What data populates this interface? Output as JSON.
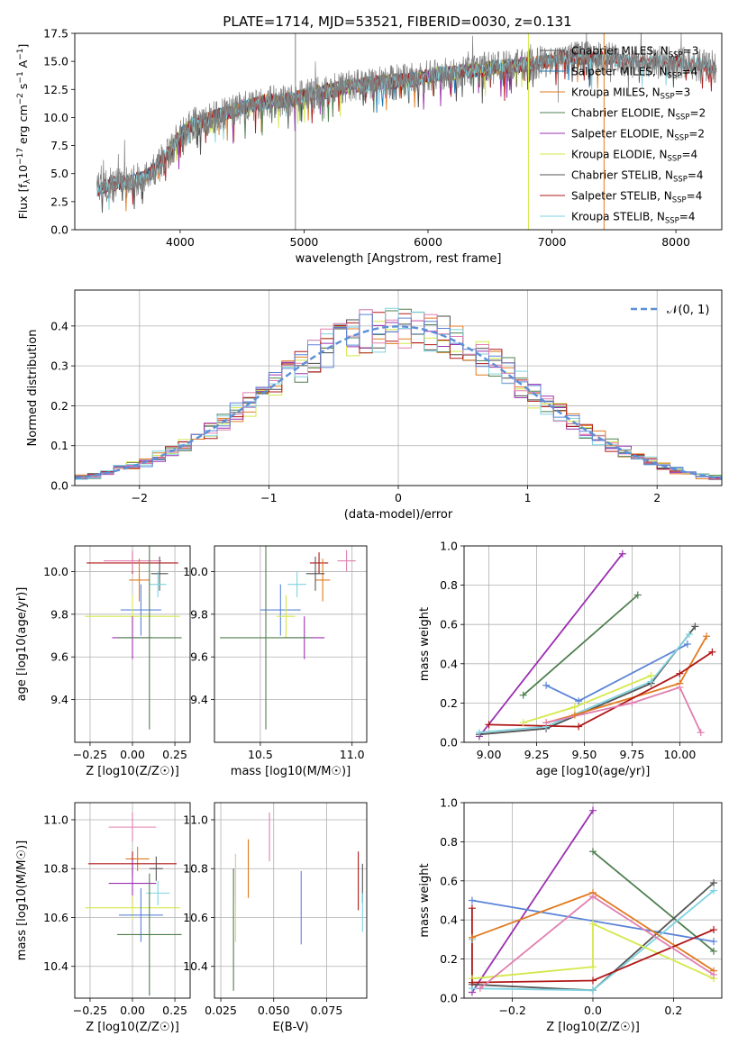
{
  "colors": {
    "Chabrier MILES": "#4a4a4a",
    "Salpeter MILES": "#1f77b4",
    "Kroupa MILES": "#e07b20",
    "Chabrier ELODIE": "#4f7f4f",
    "Salpeter ELODIE": "#9b30b0",
    "Kroupa ELODIE": "#d4e84a",
    "Chabrier STELIB": "#555555",
    "Salpeter STELIB": "#b01818",
    "Kroupa STELIB": "#7fd3e0",
    "extra_blue": "#5b84d8",
    "extra_pink": "#e07fb0",
    "gaussian": "#5b8fd6"
  },
  "chart_data": [
    {
      "id": "spectrum",
      "type": "line",
      "title": "PLATE=1714, MJD=53521, FIBERID=0030, z=0.131",
      "xlabel": "wavelength [Angstrom, rest frame]",
      "ylabel_parts": [
        "Flux [f",
        "λ",
        "10",
        "−17",
        " erg cm",
        "−2",
        " s",
        "−1",
        " A",
        "−1",
        "]"
      ],
      "xlim": [
        3150,
        8370
      ],
      "ylim": [
        0,
        17.5
      ],
      "xticks": [
        "4000",
        "5000",
        "6000",
        "7000",
        "8000"
      ],
      "yticks": [
        "0.0",
        "2.5",
        "5.0",
        "7.5",
        "10.0",
        "12.5",
        "15.0",
        "17.5"
      ],
      "grid": false,
      "legend_position": "upper right",
      "legend": [
        {
          "label": "Chabrier MILES",
          "nssp": "3"
        },
        {
          "label": "Salpeter MILES",
          "nssp": "4"
        },
        {
          "label": "Kroupa MILES",
          "nssp": "3"
        },
        {
          "label": "Chabrier ELODIE",
          "nssp": "2"
        },
        {
          "label": "Salpeter ELODIE",
          "nssp": "2"
        },
        {
          "label": "Kroupa ELODIE",
          "nssp": "4"
        },
        {
          "label": "Chabrier STELIB",
          "nssp": "4"
        },
        {
          "label": "Salpeter STELIB",
          "nssp": "4"
        },
        {
          "label": "Kroupa STELIB",
          "nssp": "4"
        }
      ],
      "nssp_prefix": "N",
      "nssp_sub": "SSP",
      "continuum": [
        [
          3330,
          3.6
        ],
        [
          3450,
          4.1
        ],
        [
          3600,
          4.2
        ],
        [
          3750,
          4.9
        ],
        [
          3900,
          6.8
        ],
        [
          4000,
          8.4
        ],
        [
          4100,
          9.4
        ],
        [
          4300,
          10.1
        ],
        [
          4500,
          10.9
        ],
        [
          4700,
          11.4
        ],
        [
          4900,
          11.6
        ],
        [
          5100,
          12.2
        ],
        [
          5300,
          12.6
        ],
        [
          5500,
          13.0
        ],
        [
          5700,
          13.2
        ],
        [
          5900,
          13.4
        ],
        [
          6100,
          13.9
        ],
        [
          6300,
          14.1
        ],
        [
          6500,
          14.4
        ],
        [
          6700,
          14.6
        ],
        [
          6900,
          14.9
        ],
        [
          7100,
          15.4
        ],
        [
          7300,
          15.3
        ],
        [
          7500,
          15.2
        ],
        [
          7700,
          14.9
        ],
        [
          7900,
          14.9
        ],
        [
          8100,
          14.8
        ],
        [
          8300,
          14.5
        ]
      ],
      "spikes_down": [
        [
          3580,
          0
        ],
        [
          3920,
          0
        ],
        [
          4250,
          0
        ],
        [
          6820,
          0
        ],
        [
          7420,
          0
        ]
      ],
      "spikes_vertical": [
        4930,
        6810,
        7420
      ]
    },
    {
      "id": "residuals",
      "type": "histogram",
      "xlabel": "(data-model)/error",
      "ylabel": "Normed distribution",
      "xlim": [
        -2.5,
        2.5
      ],
      "ylim": [
        0,
        0.49
      ],
      "xticks": [
        "−2",
        "−1",
        "0",
        "1",
        "2"
      ],
      "yticks": [
        "0.0",
        "0.1",
        "0.2",
        "0.3",
        "0.4"
      ],
      "grid": true,
      "bin_width": 0.1,
      "gaussian_label": "𝒩(0, 1)",
      "legend_position": "upper right"
    },
    {
      "id": "age-vs-Z",
      "type": "scatter",
      "xlabel": "Z [log10(Z/Z☉)]",
      "ylabel": "age  [log10(age/yr)]",
      "xlim": [
        -0.34,
        0.34
      ],
      "ylim": [
        9.2,
        10.12
      ],
      "xticks": [
        "−0.25",
        "0.00",
        "0.25"
      ],
      "yticks": [
        "9.4",
        "9.6",
        "9.8",
        "10.0"
      ],
      "grid": true,
      "points": [
        {
          "c": "Salpeter STELIB",
          "x": 0.0,
          "xe": 0.27,
          "y": 10.04,
          "ye": 0.05
        },
        {
          "c": "extra_pink",
          "x": 0.0,
          "xe": 0.17,
          "y": 10.05,
          "ye": 0.05
        },
        {
          "c": "Kroupa MILES",
          "x": 0.04,
          "xe": 0.06,
          "y": 9.96,
          "ye": 0.1
        },
        {
          "c": "Chabrier STELIB",
          "x": 0.16,
          "xe": 0.05,
          "y": 9.99,
          "ye": 0.08
        },
        {
          "c": "Kroupa STELIB",
          "x": 0.15,
          "xe": 0.05,
          "y": 9.94,
          "ye": 0.06
        },
        {
          "c": "extra_blue",
          "x": 0.05,
          "xe": 0.12,
          "y": 9.82,
          "ye": 0.12
        },
        {
          "c": "Kroupa ELODIE",
          "x": 0.0,
          "xe": 0.28,
          "y": 9.79,
          "ye": 0.1
        },
        {
          "c": "Salpeter ELODIE",
          "x": 0.0,
          "xe": 0.12,
          "y": 9.69,
          "ye": 0.1
        },
        {
          "c": "Chabrier ELODIE",
          "x": 0.1,
          "xe": 0.19,
          "y": 9.69,
          "ye": 0.43
        }
      ]
    },
    {
      "id": "age-vs-mass",
      "type": "scatter",
      "xlabel": "mass [log10(M/M☉)]",
      "ylabel": "",
      "xlim": [
        10.25,
        11.08
      ],
      "ylim": [
        9.2,
        10.12
      ],
      "xticks": [
        "10.5",
        "11.0"
      ],
      "yticks": [
        "9.4",
        "9.6",
        "9.8",
        "10.0"
      ],
      "grid": true,
      "points": [
        {
          "c": "extra_pink",
          "x": 10.97,
          "xe": 0.05,
          "y": 10.05,
          "ye": 0.05
        },
        {
          "c": "Salpeter STELIB",
          "x": 10.82,
          "xe": 0.05,
          "y": 10.04,
          "ye": 0.05
        },
        {
          "c": "Kroupa MILES",
          "x": 10.84,
          "xe": 0.04,
          "y": 9.96,
          "ye": 0.1
        },
        {
          "c": "Chabrier STELIB",
          "x": 10.8,
          "xe": 0.05,
          "y": 9.99,
          "ye": 0.08
        },
        {
          "c": "Kroupa STELIB",
          "x": 10.7,
          "xe": 0.05,
          "y": 9.94,
          "ye": 0.06
        },
        {
          "c": "extra_blue",
          "x": 10.61,
          "xe": 0.11,
          "y": 9.82,
          "ye": 0.12
        },
        {
          "c": "Kroupa ELODIE",
          "x": 10.64,
          "xe": 0.05,
          "y": 9.79,
          "ye": 0.1
        },
        {
          "c": "Salpeter ELODIE",
          "x": 10.74,
          "xe": 0.11,
          "y": 9.69,
          "ye": 0.1
        },
        {
          "c": "Chabrier ELODIE",
          "x": 10.53,
          "xe": 0.25,
          "y": 9.69,
          "ye": 0.43
        }
      ]
    },
    {
      "id": "mass-weight-vs-age",
      "type": "line",
      "xlabel": "age  [log10(age/yr)]",
      "ylabel": "mass weight",
      "xlim": [
        8.87,
        10.22
      ],
      "ylim": [
        0,
        1.0
      ],
      "xticks": [
        "9.00",
        "9.25",
        "9.50",
        "9.75",
        "10.00"
      ],
      "yticks": [
        "0.0",
        "0.2",
        "0.4",
        "0.6",
        "0.8",
        "1.0"
      ],
      "grid": true,
      "series": [
        {
          "c": "Salpeter ELODIE",
          "x": [
            8.95,
            9.7
          ],
          "y": [
            0.03,
            0.96
          ]
        },
        {
          "c": "Chabrier ELODIE",
          "x": [
            9.18,
            9.78
          ],
          "y": [
            0.24,
            0.75
          ]
        },
        {
          "c": "extra_blue",
          "x": [
            9.3,
            9.47,
            10.04
          ],
          "y": [
            0.29,
            0.21,
            0.5
          ]
        },
        {
          "c": "Chabrier STELIB",
          "x": [
            8.95,
            9.3,
            9.85,
            10.08
          ],
          "y": [
            0.04,
            0.07,
            0.3,
            0.59
          ]
        },
        {
          "c": "Kroupa STELIB",
          "x": [
            8.95,
            9.3,
            9.85,
            10.05
          ],
          "y": [
            0.05,
            0.08,
            0.31,
            0.55
          ]
        },
        {
          "c": "Kroupa MILES",
          "x": [
            9.3,
            9.45,
            10.0,
            10.14
          ],
          "y": [
            0.1,
            0.14,
            0.3,
            0.54
          ]
        },
        {
          "c": "Kroupa ELODIE",
          "x": [
            9.18,
            9.45,
            9.85
          ],
          "y": [
            0.1,
            0.18,
            0.34
          ]
        },
        {
          "c": "Salpeter STELIB",
          "x": [
            9.0,
            9.47,
            10.0,
            10.17
          ],
          "y": [
            0.09,
            0.08,
            0.35,
            0.46
          ]
        },
        {
          "c": "extra_pink",
          "x": [
            9.3,
            9.75,
            10.0,
            10.11
          ],
          "y": [
            0.1,
            0.2,
            0.28,
            0.05
          ]
        }
      ]
    },
    {
      "id": "mass-vs-Z",
      "type": "scatter",
      "xlabel": "Z [log10(Z/Z☉)]",
      "ylabel": "mass [log10(M/M☉)]",
      "xlim": [
        -0.34,
        0.34
      ],
      "ylim": [
        10.27,
        11.07
      ],
      "xticks": [
        "−0.25",
        "0.00",
        "0.25"
      ],
      "yticks": [
        "10.4",
        "10.6",
        "10.8",
        "11.0"
      ],
      "grid": true,
      "points": [
        {
          "c": "extra_pink",
          "x": 0.0,
          "xe": 0.14,
          "y": 10.97,
          "ye": 0.06
        },
        {
          "c": "Kroupa MILES",
          "x": 0.03,
          "xe": 0.07,
          "y": 10.84,
          "ye": 0.05
        },
        {
          "c": "Salpeter STELIB",
          "x": 0.0,
          "xe": 0.26,
          "y": 10.82,
          "ye": 0.05
        },
        {
          "c": "Chabrier STELIB",
          "x": 0.14,
          "xe": 0.04,
          "y": 10.8,
          "ye": 0.05
        },
        {
          "c": "Salpeter ELODIE",
          "x": 0.0,
          "xe": 0.14,
          "y": 10.74,
          "ye": 0.1
        },
        {
          "c": "Kroupa STELIB",
          "x": 0.15,
          "xe": 0.07,
          "y": 10.7,
          "ye": 0.05
        },
        {
          "c": "Kroupa ELODIE",
          "x": 0.0,
          "xe": 0.28,
          "y": 10.64,
          "ye": 0.05
        },
        {
          "c": "extra_blue",
          "x": 0.05,
          "xe": 0.13,
          "y": 10.61,
          "ye": 0.11
        },
        {
          "c": "Chabrier ELODIE",
          "x": 0.1,
          "xe": 0.19,
          "y": 10.53,
          "ye": 0.25
        }
      ]
    },
    {
      "id": "mass-vs-ebv",
      "type": "scatter",
      "xlabel": "E(B-V)",
      "ylabel": "",
      "xlim": [
        0.022,
        0.094
      ],
      "ylim": [
        10.27,
        11.07
      ],
      "xticks": [
        "0.025",
        "0.050",
        "0.075"
      ],
      "yticks": [
        "10.4",
        "10.6",
        "10.8",
        "11.0"
      ],
      "grid": true,
      "points": [
        {
          "c": "extra_pink",
          "x": 0.048,
          "xe": 0,
          "y": 10.93,
          "ye": 0.1
        },
        {
          "c": "Kroupa MILES",
          "x": 0.038,
          "xe": 0,
          "y": 10.8,
          "ye": 0.12
        },
        {
          "c": "Salpeter STELIB",
          "x": 0.09,
          "xe": 0,
          "y": 10.75,
          "ye": 0.12
        },
        {
          "c": "Chabrier STELIB",
          "x": 0.092,
          "xe": 0,
          "y": 10.74,
          "ye": 0.08
        },
        {
          "c": "Salpeter ELODIE",
          "x": 0.032,
          "xe": 0,
          "y": 10.76,
          "ye": 0.1
        },
        {
          "c": "Kroupa STELIB",
          "x": 0.092,
          "xe": 0,
          "y": 10.62,
          "ye": 0.08
        },
        {
          "c": "extra_blue",
          "x": 0.063,
          "xe": 0,
          "y": 10.64,
          "ye": 0.15
        },
        {
          "c": "Kroupa ELODIE",
          "x": 0.032,
          "xe": 0,
          "y": 10.68,
          "ye": 0.18
        },
        {
          "c": "Chabrier ELODIE",
          "x": 0.031,
          "xe": 0,
          "y": 10.55,
          "ye": 0.25
        }
      ]
    },
    {
      "id": "mass-weight-vs-Z",
      "type": "line",
      "xlabel": "Z [log10(Z/Z☉)]",
      "ylabel": "mass weight",
      "xlim": [
        -0.32,
        0.32
      ],
      "ylim": [
        0,
        1.0
      ],
      "xticks": [
        "−0.2",
        "0.0",
        "0.2"
      ],
      "yticks": [
        "0.0",
        "0.2",
        "0.4",
        "0.6",
        "0.8",
        "1.0"
      ],
      "grid": true,
      "series": [
        {
          "c": "Salpeter ELODIE",
          "x": [
            -0.3,
            0.0
          ],
          "y": [
            0.03,
            0.96
          ]
        },
        {
          "c": "Chabrier ELODIE",
          "x": [
            0.0,
            0.3
          ],
          "y": [
            0.75,
            0.24
          ]
        },
        {
          "c": "extra_blue",
          "x": [
            -0.3,
            0.3
          ],
          "y": [
            0.5,
            0.29
          ]
        },
        {
          "c": "Chabrier STELIB",
          "x": [
            -0.3,
            0.0,
            0.3
          ],
          "y": [
            0.07,
            0.04,
            0.59
          ]
        },
        {
          "c": "Kroupa STELIB",
          "x": [
            -0.3,
            -0.3,
            0.0,
            0.3
          ],
          "y": [
            0.3,
            0.05,
            0.04,
            0.55
          ]
        },
        {
          "c": "Kroupa MILES",
          "x": [
            -0.3,
            0.0,
            0.3
          ],
          "y": [
            0.31,
            0.54,
            0.14
          ]
        },
        {
          "c": "Kroupa ELODIE",
          "x": [
            -0.3,
            0.0,
            0.0,
            0.3
          ],
          "y": [
            0.1,
            0.16,
            0.38,
            0.1
          ]
        },
        {
          "c": "Salpeter STELIB",
          "x": [
            -0.3,
            -0.3,
            0.0,
            0.3
          ],
          "y": [
            0.46,
            0.08,
            0.09,
            0.35
          ]
        },
        {
          "c": "extra_pink",
          "x": [
            -0.28,
            0.0,
            0.3
          ],
          "y": [
            0.05,
            0.52,
            0.12
          ]
        }
      ]
    }
  ]
}
